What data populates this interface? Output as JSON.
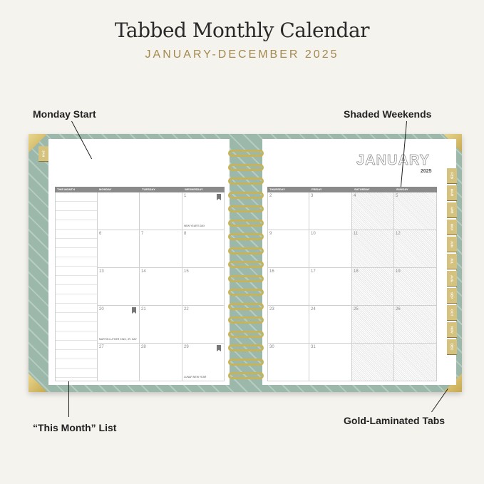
{
  "title": "Tabbed Monthly Calendar",
  "subtitle": "JANUARY-DECEMBER 2025",
  "callouts": {
    "monday": "Monday Start",
    "weekends": "Shaded Weekends",
    "list": "“This Month” List",
    "tabs": "Gold-Laminated Tabs"
  },
  "calendar": {
    "month": "JANUARY",
    "year": "2025",
    "left_headers": [
      "THIS MONTH",
      "MONDAY",
      "TUESDAY",
      "WEDNESDAY"
    ],
    "right_headers": [
      "THURSDAY",
      "FRIDAY",
      "SATURDAY",
      "SUNDAY"
    ],
    "weeks": [
      [
        "",
        "",
        "1",
        "2",
        "3",
        "4",
        "5"
      ],
      [
        "6",
        "7",
        "8",
        "9",
        "10",
        "11",
        "12"
      ],
      [
        "13",
        "14",
        "15",
        "16",
        "17",
        "18",
        "19"
      ],
      [
        "20",
        "21",
        "22",
        "23",
        "24",
        "25",
        "26"
      ],
      [
        "27",
        "28",
        "29",
        "30",
        "31",
        "",
        ""
      ]
    ],
    "holidays": {
      "1": "NEW YEAR'S DAY",
      "20": "MARTIN LUTHER KING, JR. DAY",
      "29": "LUNAR NEW YEAR"
    },
    "flagged": [
      "1",
      "20",
      "29"
    ]
  },
  "tabs": {
    "left": "JAN",
    "right": [
      "FEB",
      "MAR",
      "APR",
      "MAY",
      "JUN",
      "JUL",
      "AUG",
      "SEP",
      "OCT",
      "NOV",
      "DEC"
    ]
  },
  "colors": {
    "gold": "#a58a4f",
    "cover": "#9cb8ab",
    "header": "#8a8a8a"
  }
}
